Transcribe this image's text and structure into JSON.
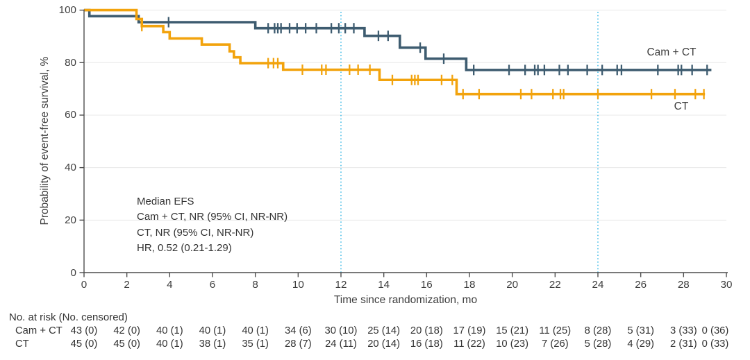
{
  "chart_data": {
    "type": "line",
    "subtype": "kaplan_meier_step",
    "title": "",
    "xlabel": "Time since randomization, mo",
    "ylabel": "Probability of event-free survival, %",
    "xlim": [
      0,
      30
    ],
    "ylim": [
      0,
      100
    ],
    "x_ticks": [
      0,
      2,
      4,
      6,
      8,
      10,
      12,
      14,
      16,
      18,
      20,
      22,
      24,
      26,
      28,
      30
    ],
    "y_ticks": [
      0,
      20,
      40,
      60,
      80,
      100
    ],
    "grid": "horizontal",
    "legend_position": "curve-end-labels",
    "reference_lines_x": [
      12,
      24
    ],
    "series": [
      {
        "name": "Cam + CT",
        "color": "#3e5c70",
        "steps": [
          [
            0,
            100
          ],
          [
            0.25,
            97.7
          ],
          [
            2.55,
            95.4
          ],
          [
            8.0,
            93.1
          ],
          [
            13.1,
            90.2
          ],
          [
            14.75,
            85.7
          ],
          [
            15.95,
            81.5
          ],
          [
            17.85,
            77.2
          ],
          [
            29.3,
            77.2
          ]
        ],
        "censor_times": [
          3.95,
          8.6,
          8.9,
          9.05,
          9.2,
          9.6,
          9.95,
          10.35,
          10.85,
          11.55,
          11.9,
          12.2,
          12.6,
          13.75,
          14.2,
          15.7,
          16.8,
          18.2,
          19.85,
          20.6,
          21.05,
          21.2,
          21.5,
          22.2,
          22.6,
          23.5,
          24.2,
          24.9,
          25.1,
          26.8,
          27.75,
          27.9,
          28.4,
          29.1
        ]
      },
      {
        "name": "CT",
        "color": "#f2a30d",
        "steps": [
          [
            0,
            100
          ],
          [
            2.45,
            96.6
          ],
          [
            2.7,
            93.9
          ],
          [
            3.7,
            91.6
          ],
          [
            4.0,
            89.2
          ],
          [
            5.5,
            86.9
          ],
          [
            6.8,
            84.3
          ],
          [
            7.0,
            82.0
          ],
          [
            7.3,
            79.8
          ],
          [
            9.3,
            77.3
          ],
          [
            13.8,
            73.4
          ],
          [
            17.4,
            68.0
          ],
          [
            29.0,
            68.0
          ]
        ],
        "censor_times": [
          2.7,
          8.6,
          8.85,
          9.05,
          10.2,
          11.1,
          11.3,
          12.4,
          12.8,
          13.35,
          14.4,
          15.3,
          15.45,
          15.6,
          16.7,
          17.2,
          17.7,
          18.45,
          20.4,
          20.9,
          21.9,
          22.25,
          22.4,
          24.0,
          26.5,
          27.6,
          28.55,
          28.95
        ]
      }
    ],
    "annotation": {
      "lines": [
        "Median EFS",
        "Cam + CT, NR (95% CI, NR-NR)",
        "CT, NR (95% CI, NR-NR)",
        "HR, 0.52 (0.21-1.29)"
      ]
    }
  },
  "risk_table": {
    "header": "No. at risk (No. censored)",
    "times": [
      0,
      2,
      4,
      6,
      8,
      10,
      12,
      14,
      16,
      18,
      20,
      22,
      24,
      26,
      28,
      30
    ],
    "rows": [
      {
        "label": "Cam + CT",
        "values": [
          "43 (0)",
          "42 (0)",
          "40 (1)",
          "40 (1)",
          "40 (1)",
          "34 (6)",
          "30 (10)",
          "25 (14)",
          "20 (18)",
          "17 (19)",
          "15 (21)",
          "11 (25)",
          "8 (28)",
          "5 (31)",
          "3 (33)",
          "0 (36)"
        ]
      },
      {
        "label": "CT",
        "values": [
          "45 (0)",
          "45 (0)",
          "40 (1)",
          "38 (1)",
          "35 (1)",
          "28 (7)",
          "24 (11)",
          "20 (14)",
          "16 (18)",
          "11 (22)",
          "10 (23)",
          "7 (26)",
          "5 (28)",
          "4 (29)",
          "2 (31)",
          "0 (33)"
        ]
      }
    ]
  },
  "colors": {
    "camct_curve": "#3e5c70",
    "ct_curve": "#f2a30d",
    "reference_line": "#5ac4ea",
    "gridline": "#e8e8e8",
    "axis": "#4d4d4d",
    "text": "#3a3a3a"
  }
}
